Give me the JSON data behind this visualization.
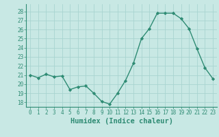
{
  "x": [
    0,
    1,
    2,
    3,
    4,
    5,
    6,
    7,
    8,
    9,
    10,
    11,
    12,
    13,
    14,
    15,
    16,
    17,
    18,
    19,
    20,
    21,
    22,
    23
  ],
  "y": [
    21.0,
    20.7,
    21.1,
    20.8,
    20.9,
    19.4,
    19.7,
    19.8,
    19.0,
    18.1,
    17.8,
    19.0,
    20.4,
    22.3,
    25.0,
    26.1,
    27.8,
    27.8,
    27.8,
    27.2,
    26.1,
    23.9,
    21.8,
    20.6
  ],
  "line_color": "#2e8b73",
  "marker": "D",
  "marker_size": 2.2,
  "line_width": 1.0,
  "bg_color": "#c8e8e4",
  "grid_color": "#a8d4d0",
  "xlabel": "Humidex (Indice chaleur)",
  "ylim": [
    17.5,
    28.8
  ],
  "xlim": [
    -0.5,
    23.5
  ],
  "yticks": [
    18,
    19,
    20,
    21,
    22,
    23,
    24,
    25,
    26,
    27,
    28
  ],
  "xticks": [
    0,
    1,
    2,
    3,
    4,
    5,
    6,
    7,
    8,
    9,
    10,
    11,
    12,
    13,
    14,
    15,
    16,
    17,
    18,
    19,
    20,
    21,
    22,
    23
  ],
  "tick_label_size": 5.5,
  "xlabel_size": 7.5
}
